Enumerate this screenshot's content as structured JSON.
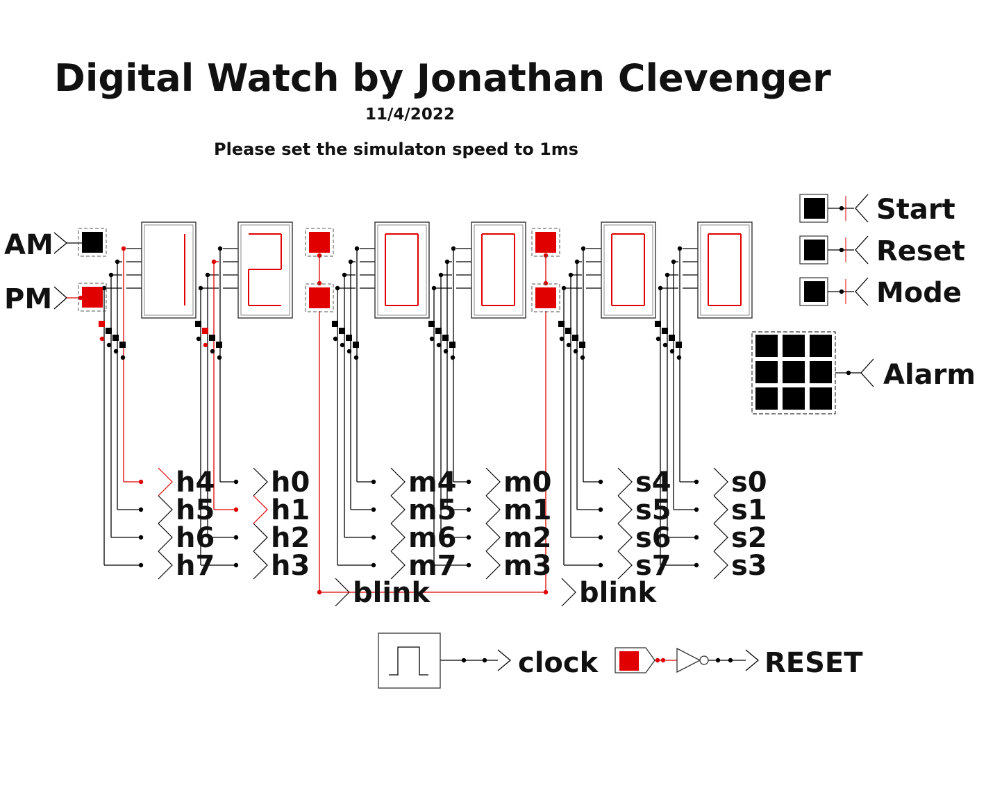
{
  "header": {
    "title": "Digital Watch by Jonathan Clevenger",
    "date": "11/4/2022",
    "note": "Please set the simulaton speed to 1ms"
  },
  "indicators": {
    "am": "AM",
    "pm": "PM"
  },
  "buttons": {
    "start": "Start",
    "reset": "Reset",
    "mode": "Mode",
    "alarm": "Alarm"
  },
  "display": {
    "digits": [
      "1",
      "2",
      "0",
      "0",
      "0",
      "0"
    ],
    "am_on": false,
    "pm_on": true,
    "colon_1_on": true,
    "colon_2_on": true
  },
  "outputs": {
    "hours_a": [
      "h4",
      "h5",
      "h6",
      "h7"
    ],
    "hours_b": [
      "h0",
      "h1",
      "h2",
      "h3"
    ],
    "minutes_a": [
      "m4",
      "m5",
      "m6",
      "m7"
    ],
    "minutes_b": [
      "m0",
      "m1",
      "m2",
      "m3"
    ],
    "seconds_a": [
      "s4",
      "s5",
      "s6",
      "s7"
    ],
    "seconds_b": [
      "s0",
      "s1",
      "s2",
      "s3"
    ],
    "blink_1": "blink",
    "blink_2": "blink"
  },
  "bottom": {
    "clock": "clock",
    "reset_out": "RESET"
  },
  "colors": {
    "active": "#e00000",
    "inactive": "#000000",
    "wire": "#000000"
  }
}
